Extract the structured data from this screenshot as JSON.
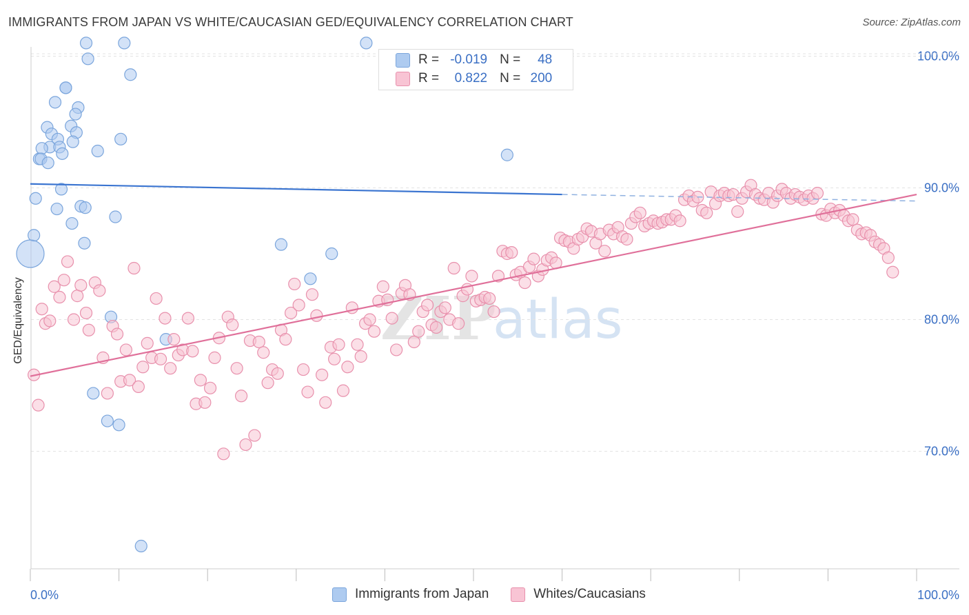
{
  "header": {
    "title": "IMMIGRANTS FROM JAPAN VS WHITE/CAUCASIAN GED/EQUIVALENCY CORRELATION CHART",
    "source": "Source: ZipAtlas.com"
  },
  "watermark": {
    "zip": "ZIP",
    "atlas": "atlas"
  },
  "legend": {
    "rows": [
      {
        "r_label": "R =",
        "r_value": "-0.019",
        "n_label": "N =",
        "n_value": "48",
        "color": "#aecbf0",
        "border": "#7aa5dc"
      },
      {
        "r_label": "R =",
        "r_value": "0.822",
        "n_label": "N =",
        "n_value": "200",
        "color": "#f8c4d4",
        "border": "#e890ac"
      }
    ]
  },
  "chart_data": {
    "type": "scatter",
    "title": "IMMIGRANTS FROM JAPAN VS WHITE/CAUCASIAN GED/EQUIVALENCY CORRELATION CHART",
    "xlabel": "",
    "ylabel": "GED/Equivalency",
    "xlim": [
      0,
      100
    ],
    "ylim": [
      60,
      104
    ],
    "x_tick_labels": [
      "0.0%",
      "100.0%"
    ],
    "y_ticks": [
      70,
      80,
      90,
      100
    ],
    "y_tick_labels": [
      "70.0%",
      "80.0%",
      "90.0%",
      "100.0%"
    ],
    "grid": true,
    "legend_position": "bottom-center",
    "series": [
      {
        "name": "Immigrants from Japan",
        "color": "#7aa5dc",
        "fill": "#aecbf0",
        "trend": {
          "x": [
            0,
            60
          ],
          "y": [
            90.3,
            89.5
          ],
          "dashed_to": [
            100,
            89.0
          ]
        },
        "points": [
          [
            6.3,
            101
          ],
          [
            10.6,
            101
          ],
          [
            37.9,
            101
          ],
          [
            6.5,
            99.8
          ],
          [
            11.3,
            98.6
          ],
          [
            4.0,
            97.6
          ],
          [
            4.0,
            97.6
          ],
          [
            2.8,
            96.5
          ],
          [
            5.4,
            96.1
          ],
          [
            5.1,
            95.6
          ],
          [
            1.9,
            94.6
          ],
          [
            4.6,
            94.7
          ],
          [
            2.4,
            94.1
          ],
          [
            5.2,
            94.2
          ],
          [
            3.1,
            93.7
          ],
          [
            4.8,
            93.5
          ],
          [
            2.2,
            93.1
          ],
          [
            3.3,
            93.1
          ],
          [
            1.3,
            93.0
          ],
          [
            7.6,
            92.8
          ],
          [
            10.2,
            93.7
          ],
          [
            3.6,
            92.6
          ],
          [
            1.0,
            92.2
          ],
          [
            1.2,
            92.2
          ],
          [
            2.0,
            91.9
          ],
          [
            53.8,
            92.5
          ],
          [
            3.5,
            89.9
          ],
          [
            0.6,
            89.2
          ],
          [
            5.7,
            88.6
          ],
          [
            6.2,
            88.5
          ],
          [
            3.0,
            88.4
          ],
          [
            9.6,
            87.8
          ],
          [
            4.7,
            87.3
          ],
          [
            0.4,
            86.4
          ],
          [
            6.1,
            85.8
          ],
          [
            28.3,
            85.7
          ],
          [
            34.0,
            85.0
          ],
          [
            0.0,
            85.0
          ],
          [
            31.6,
            83.1
          ],
          [
            9.1,
            80.2
          ],
          [
            15.3,
            78.5
          ],
          [
            7.1,
            74.4
          ],
          [
            8.7,
            72.3
          ],
          [
            10.0,
            72.0
          ],
          [
            12.5,
            62.8
          ]
        ]
      },
      {
        "name": "Whites/Caucasians",
        "color": "#e890ac",
        "fill": "#f8c4d4",
        "trend": {
          "x": [
            0,
            100
          ],
          "y": [
            75.7,
            89.5
          ]
        },
        "points": [
          [
            0.4,
            75.8
          ],
          [
            0.9,
            73.5
          ],
          [
            1.3,
            80.8
          ],
          [
            1.7,
            79.7
          ],
          [
            2.2,
            79.9
          ],
          [
            2.7,
            82.5
          ],
          [
            3.3,
            81.7
          ],
          [
            3.8,
            83.0
          ],
          [
            4.2,
            84.4
          ],
          [
            4.9,
            80.0
          ],
          [
            5.3,
            81.8
          ],
          [
            5.7,
            82.6
          ],
          [
            6.3,
            80.5
          ],
          [
            6.6,
            79.2
          ],
          [
            7.3,
            82.8
          ],
          [
            7.8,
            82.2
          ],
          [
            8.2,
            77.1
          ],
          [
            8.7,
            74.4
          ],
          [
            9.3,
            79.5
          ],
          [
            9.8,
            78.9
          ],
          [
            10.2,
            75.3
          ],
          [
            10.8,
            77.7
          ],
          [
            11.2,
            75.4
          ],
          [
            11.7,
            83.9
          ],
          [
            12.2,
            74.9
          ],
          [
            12.7,
            76.4
          ],
          [
            13.2,
            78.2
          ],
          [
            13.7,
            77.1
          ],
          [
            14.2,
            81.6
          ],
          [
            14.7,
            77.0
          ],
          [
            15.2,
            80.1
          ],
          [
            15.8,
            76.3
          ],
          [
            16.2,
            78.5
          ],
          [
            16.7,
            77.3
          ],
          [
            17.2,
            77.7
          ],
          [
            17.8,
            80.1
          ],
          [
            18.3,
            77.6
          ],
          [
            18.7,
            73.6
          ],
          [
            19.2,
            75.4
          ],
          [
            19.7,
            73.7
          ],
          [
            20.3,
            74.8
          ],
          [
            20.8,
            77.1
          ],
          [
            21.3,
            78.6
          ],
          [
            21.8,
            69.8
          ],
          [
            22.3,
            80.2
          ],
          [
            22.8,
            79.6
          ],
          [
            23.3,
            76.3
          ],
          [
            23.8,
            74.2
          ],
          [
            24.3,
            70.5
          ],
          [
            24.8,
            78.4
          ],
          [
            25.3,
            71.2
          ],
          [
            25.8,
            78.3
          ],
          [
            26.3,
            77.5
          ],
          [
            26.8,
            75.2
          ],
          [
            27.3,
            76.2
          ],
          [
            27.9,
            75.9
          ],
          [
            28.3,
            79.2
          ],
          [
            28.8,
            78.5
          ],
          [
            29.4,
            80.5
          ],
          [
            29.8,
            82.7
          ],
          [
            30.3,
            81.1
          ],
          [
            30.8,
            76.2
          ],
          [
            31.3,
            74.5
          ],
          [
            31.8,
            81.9
          ],
          [
            32.3,
            80.3
          ],
          [
            32.9,
            75.8
          ],
          [
            33.3,
            73.7
          ],
          [
            33.9,
            77.9
          ],
          [
            34.3,
            77.0
          ],
          [
            34.8,
            78.1
          ],
          [
            35.3,
            74.6
          ],
          [
            35.8,
            76.4
          ],
          [
            36.3,
            80.9
          ],
          [
            36.9,
            78.1
          ],
          [
            37.3,
            77.2
          ],
          [
            37.8,
            79.7
          ],
          [
            38.3,
            80.0
          ],
          [
            38.8,
            79.1
          ],
          [
            39.3,
            81.4
          ],
          [
            39.8,
            82.5
          ],
          [
            40.3,
            81.5
          ],
          [
            40.8,
            80.1
          ],
          [
            41.3,
            77.7
          ],
          [
            41.9,
            82.0
          ],
          [
            42.3,
            82.6
          ],
          [
            42.8,
            81.9
          ],
          [
            43.3,
            78.3
          ],
          [
            43.8,
            79.1
          ],
          [
            44.3,
            80.6
          ],
          [
            44.8,
            81.1
          ],
          [
            45.3,
            79.6
          ],
          [
            45.8,
            79.4
          ],
          [
            46.3,
            80.6
          ],
          [
            46.8,
            80.9
          ],
          [
            47.3,
            80.0
          ],
          [
            47.8,
            83.9
          ],
          [
            48.3,
            79.7
          ],
          [
            48.8,
            81.8
          ],
          [
            49.3,
            82.3
          ],
          [
            49.8,
            83.3
          ],
          [
            50.3,
            81.4
          ],
          [
            50.8,
            81.5
          ],
          [
            51.3,
            81.7
          ],
          [
            51.8,
            81.6
          ],
          [
            52.3,
            80.6
          ],
          [
            52.8,
            83.3
          ],
          [
            53.3,
            85.2
          ],
          [
            53.8,
            85.0
          ],
          [
            54.3,
            85.1
          ],
          [
            54.8,
            83.4
          ],
          [
            55.3,
            83.6
          ],
          [
            55.8,
            82.8
          ],
          [
            56.3,
            84.0
          ],
          [
            56.8,
            84.6
          ],
          [
            57.3,
            83.3
          ],
          [
            57.8,
            83.8
          ],
          [
            58.3,
            84.5
          ],
          [
            58.8,
            84.7
          ],
          [
            59.3,
            84.3
          ],
          [
            59.8,
            86.2
          ],
          [
            60.3,
            86.0
          ],
          [
            60.8,
            85.9
          ],
          [
            61.3,
            85.4
          ],
          [
            61.8,
            86.1
          ],
          [
            62.3,
            86.3
          ],
          [
            62.8,
            86.9
          ],
          [
            63.3,
            86.7
          ],
          [
            63.8,
            85.8
          ],
          [
            64.3,
            86.5
          ],
          [
            64.8,
            85.2
          ],
          [
            65.3,
            86.8
          ],
          [
            65.8,
            86.5
          ],
          [
            66.3,
            87.0
          ],
          [
            66.8,
            86.3
          ],
          [
            67.3,
            86.1
          ],
          [
            67.8,
            87.3
          ],
          [
            68.3,
            87.8
          ],
          [
            68.8,
            88.1
          ],
          [
            69.3,
            87.1
          ],
          [
            69.8,
            87.3
          ],
          [
            70.3,
            87.5
          ],
          [
            70.8,
            87.3
          ],
          [
            71.3,
            87.4
          ],
          [
            71.8,
            87.6
          ],
          [
            72.3,
            87.6
          ],
          [
            72.8,
            87.9
          ],
          [
            73.3,
            87.5
          ],
          [
            73.8,
            89.1
          ],
          [
            74.3,
            89.4
          ],
          [
            74.8,
            89.0
          ],
          [
            75.3,
            89.3
          ],
          [
            75.8,
            88.3
          ],
          [
            76.3,
            88.1
          ],
          [
            76.8,
            89.7
          ],
          [
            77.3,
            88.8
          ],
          [
            77.8,
            89.4
          ],
          [
            78.3,
            89.6
          ],
          [
            78.8,
            89.4
          ],
          [
            79.3,
            89.5
          ],
          [
            79.8,
            88.2
          ],
          [
            80.3,
            89.2
          ],
          [
            80.8,
            89.7
          ],
          [
            81.3,
            90.2
          ],
          [
            81.8,
            89.5
          ],
          [
            82.3,
            89.2
          ],
          [
            82.8,
            89.1
          ],
          [
            83.3,
            89.6
          ],
          [
            83.8,
            88.9
          ],
          [
            84.3,
            89.4
          ],
          [
            84.8,
            89.9
          ],
          [
            85.3,
            89.6
          ],
          [
            85.8,
            89.2
          ],
          [
            86.3,
            89.5
          ],
          [
            86.8,
            89.3
          ],
          [
            87.3,
            89.1
          ],
          [
            87.8,
            89.4
          ],
          [
            88.3,
            89.2
          ],
          [
            88.8,
            89.6
          ],
          [
            89.3,
            88.0
          ],
          [
            89.8,
            87.9
          ],
          [
            90.3,
            88.4
          ],
          [
            90.8,
            88.1
          ],
          [
            91.3,
            88.3
          ],
          [
            91.8,
            87.9
          ],
          [
            92.3,
            87.5
          ],
          [
            92.8,
            87.6
          ],
          [
            93.3,
            86.8
          ],
          [
            93.8,
            86.5
          ],
          [
            94.3,
            86.6
          ],
          [
            94.8,
            86.4
          ],
          [
            95.3,
            85.9
          ],
          [
            95.8,
            85.7
          ],
          [
            96.3,
            85.4
          ],
          [
            96.8,
            84.7
          ],
          [
            97.3,
            83.6
          ]
        ]
      }
    ]
  },
  "bottom_legend": {
    "items": [
      {
        "label": "Immigrants from Japan",
        "color": "#aecbf0",
        "border": "#7aa5dc"
      },
      {
        "label": "Whites/Caucasians",
        "color": "#f8c4d4",
        "border": "#e890ac"
      }
    ]
  }
}
